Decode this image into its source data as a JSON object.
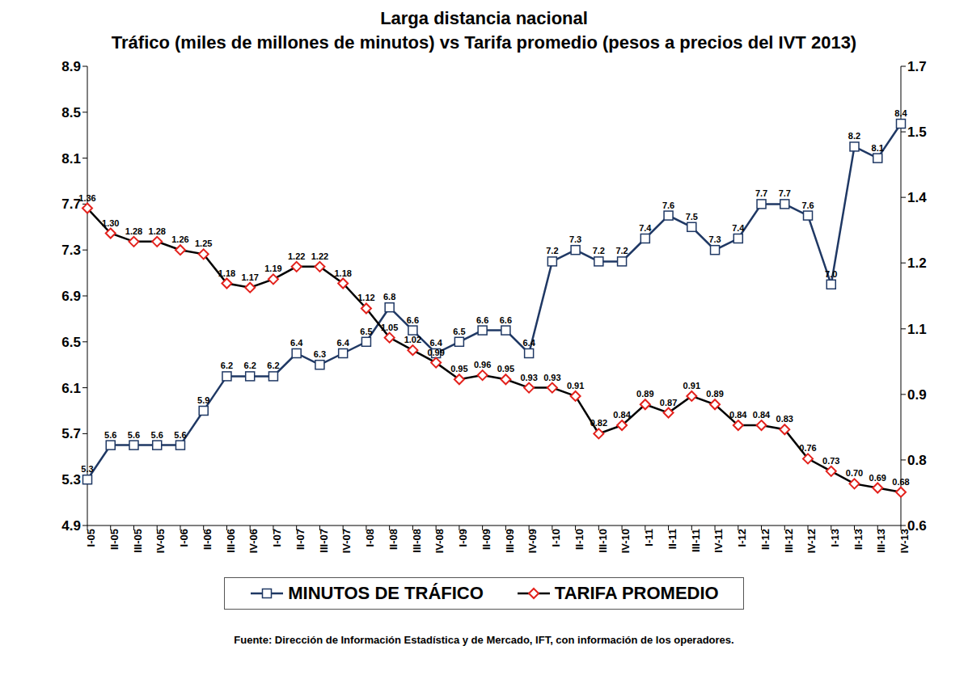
{
  "chart_data": {
    "type": "line",
    "title": "Larga distancia nacional",
    "subtitle": "Tráfico (miles de millones de minutos) vs Tarifa promedio (pesos a precios del IVT 2013)",
    "source": "Fuente: Dirección de Información Estadística y de Mercado, IFT, con información de los operadores.",
    "categories": [
      "I-05",
      "II-05",
      "III-05",
      "IV-05",
      "I-06",
      "II-06",
      "III-06",
      "IV-06",
      "I-07",
      "II-07",
      "III-07",
      "IV-07",
      "I-08",
      "II-08",
      "III-08",
      "IV-08",
      "I-09",
      "II-09",
      "III-09",
      "IV-09",
      "I-10",
      "II-10",
      "III-10",
      "IV-10",
      "I-11",
      "II-11",
      "III-11",
      "IV-11",
      "I-12",
      "II-12",
      "III-12",
      "IV-12",
      "I-13",
      "II-13",
      "III-13",
      "IV-13"
    ],
    "series": [
      {
        "name": "MINUTOS DE TRÁFICO",
        "color": "#1f3864",
        "marker": "square",
        "values": [
          5.3,
          5.6,
          5.6,
          5.6,
          5.6,
          5.9,
          6.2,
          6.2,
          6.2,
          6.4,
          6.3,
          6.4,
          6.5,
          6.8,
          6.6,
          6.4,
          6.5,
          6.6,
          6.6,
          6.4,
          7.2,
          7.3,
          7.2,
          7.2,
          7.4,
          7.6,
          7.5,
          7.3,
          7.4,
          7.7,
          7.7,
          7.6,
          7.0,
          8.2,
          8.1,
          8.4
        ],
        "value_labels": [
          "5.3",
          "5.6",
          "5.6",
          "5.6",
          "5.6",
          "5.9",
          "6.2",
          "6.2",
          "6.2",
          "6.4",
          "6.3",
          "6.4",
          "6.5",
          "6.8",
          "6.6",
          "6.4",
          "6.5",
          "6.6",
          "6.6",
          "6.4",
          "7.2",
          "7.3",
          "7.2",
          "7.2",
          "7.4",
          "7.6",
          "7.5",
          "7.3",
          "7.4",
          "7.7",
          "7.7",
          "7.6",
          "7.0",
          "8.2",
          "8.1",
          "8.4"
        ]
      },
      {
        "name": "TARIFA PROMEDIO",
        "color": "#000000",
        "marker": "diamond",
        "axis": "y2",
        "values": [
          1.36,
          1.3,
          1.28,
          1.28,
          1.26,
          1.25,
          1.18,
          1.17,
          1.19,
          1.22,
          1.22,
          1.18,
          1.12,
          1.05,
          1.02,
          0.99,
          0.95,
          0.96,
          0.95,
          0.93,
          0.93,
          0.91,
          0.82,
          0.84,
          0.89,
          0.87,
          0.91,
          0.89,
          0.84,
          0.84,
          0.83,
          0.76,
          0.73,
          0.7,
          0.69,
          0.68
        ],
        "value_labels": [
          "1.36",
          "1.30",
          "1.28",
          "1.28",
          "1.26",
          "1.25",
          "1.18",
          "1.17",
          "1.19",
          "1.22",
          "1.22",
          "1.18",
          "1.12",
          "1.05",
          "1.02",
          "0.99",
          "0.95",
          "0.96",
          "0.95",
          "0.93",
          "0.93",
          "0.91",
          "0.82",
          "0.84",
          "0.89",
          "0.87",
          "0.91",
          "0.89",
          "0.84",
          "0.84",
          "0.83",
          "0.76",
          "0.73",
          "0.70",
          "0.69",
          "0.68"
        ]
      }
    ],
    "ylim": [
      4.9,
      8.9
    ],
    "yticks": [
      4.9,
      5.3,
      5.7,
      6.1,
      6.5,
      6.9,
      7.3,
      7.7,
      8.1,
      8.5,
      8.9
    ],
    "y2lim": [
      0.6,
      1.7
    ],
    "y2ticks": [
      0.6,
      {
        "value": 0.757,
        "label": "0.8"
      },
      {
        "value": 0.914,
        "label": "0.9"
      },
      {
        "value": 1.071,
        "label": "1.1"
      },
      {
        "value": 1.229,
        "label": "1.2"
      },
      {
        "value": 1.386,
        "label": "1.4"
      },
      {
        "value": 1.543,
        "label": "1.5"
      },
      1.7
    ],
    "grid": false,
    "legend": "bottom",
    "data_labels": true
  }
}
